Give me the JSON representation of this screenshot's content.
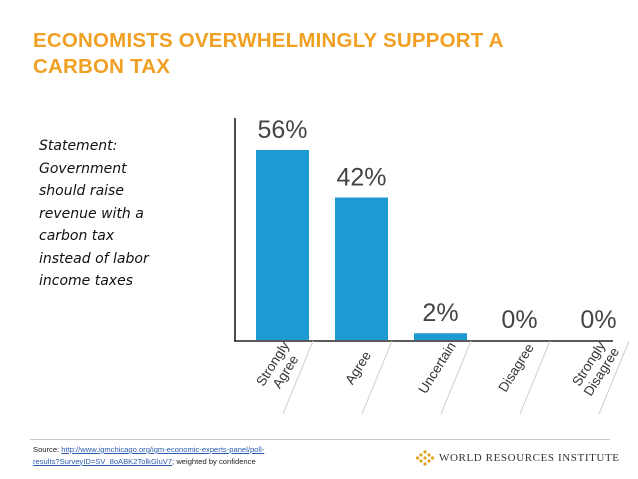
{
  "theme": {
    "title_color": "#f0a023",
    "bar_color": "#1e9ad3",
    "axis_color": "#222222"
  },
  "slide": {
    "title_line1": "ECONOMISTS OVERWHELMINGLY SUPPORT A",
    "title_line2": "CARBON TAX"
  },
  "statement": {
    "lines": [
      "Statement:",
      "Government",
      "should raise",
      "revenue with a",
      "carbon tax",
      "instead of labor",
      "income taxes"
    ]
  },
  "chart_data": {
    "type": "bar",
    "categories": [
      "Strongly Agree",
      "Agree",
      "Uncertain",
      "Disagree",
      "Strongly Disagree"
    ],
    "category_lines": [
      [
        "Strongly",
        "Agree"
      ],
      [
        "Agree"
      ],
      [
        "Uncertain"
      ],
      [
        "Disagree"
      ],
      [
        "Strongly",
        "Disagree"
      ]
    ],
    "values": [
      56,
      42,
      2,
      0,
      0
    ],
    "value_labels": [
      "56%",
      "42%",
      "2%",
      "0%",
      "0%"
    ],
    "ylim": [
      0,
      56
    ],
    "grid": false,
    "legend": "none"
  },
  "footer": {
    "source_prefix": "Source: ",
    "source_url_line1": "http://www.igmchicago.org/igm-economic-experts-panel/poll-",
    "source_url_line2": "results?SurveyID=SV_8oABK2TolkGluV7",
    "source_suffix": "; weighted by confidence",
    "logo_text": "WORLD RESOURCES INSTITUTE",
    "logo_icon": "wri-logo-icon"
  }
}
